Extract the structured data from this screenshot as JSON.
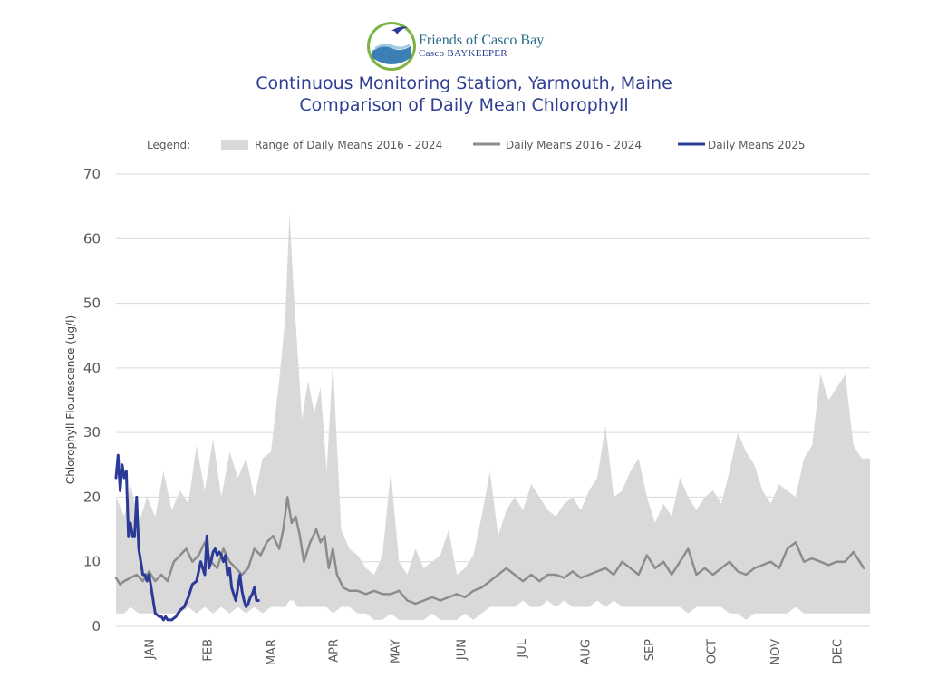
{
  "header": {
    "logo_line1": "Friends of Casco Bay",
    "logo_line2": "Casco BAYKEEPER",
    "title_line1": "Continuous Monitoring Station, Yarmouth, Maine",
    "title_line2": "Comparison of Daily Mean Chlorophyll"
  },
  "legend": {
    "label": "Legend:",
    "range_label": "Range of Daily Means 2016 - 2024",
    "mean_label": "Daily Means 2016 - 2024",
    "current_label": "Daily Means 2025"
  },
  "colors": {
    "range_fill": "#d9d9da",
    "mean_line": "#8c8c8c",
    "current_line": "#2b3a96",
    "grid": "#d9d9d9",
    "title": "#2e3f92"
  },
  "chart_data": {
    "type": "area",
    "title": "Continuous Monitoring Station, Yarmouth, Maine Comparison of Daily Mean Chlorophyll",
    "xlabel": "",
    "ylabel": "Chlorophyll Flourescence (ug/l)",
    "ylim": [
      0,
      70
    ],
    "yticks": [
      0,
      10,
      20,
      30,
      40,
      50,
      60,
      70
    ],
    "xlim_day_of_year": [
      1,
      366
    ],
    "month_labels": [
      "JAN",
      "FEB",
      "MAR",
      "APR",
      "MAY",
      "JUN",
      "JUL",
      "AUG",
      "SEP",
      "OCT",
      "NOV",
      "DEC"
    ],
    "month_label_day_of_year": [
      17,
      45,
      76,
      106,
      136,
      168,
      197,
      228,
      259,
      289,
      320,
      350
    ],
    "grid": true,
    "legend_position": "top",
    "series": [
      {
        "name": "Range of Daily Means 2016 - 2024",
        "kind": "band",
        "x": [
          1,
          5,
          8,
          12,
          16,
          20,
          24,
          28,
          32,
          36,
          40,
          44,
          48,
          52,
          56,
          60,
          64,
          68,
          72,
          76,
          80,
          83,
          85,
          87,
          89,
          91,
          94,
          97,
          100,
          103,
          106,
          110,
          114,
          118,
          122,
          126,
          130,
          134,
          138,
          142,
          146,
          150,
          154,
          158,
          162,
          166,
          170,
          174,
          178,
          182,
          186,
          190,
          194,
          198,
          202,
          206,
          210,
          214,
          218,
          222,
          226,
          230,
          234,
          238,
          242,
          246,
          250,
          254,
          258,
          262,
          266,
          270,
          274,
          278,
          282,
          286,
          290,
          294,
          298,
          302,
          306,
          310,
          314,
          318,
          322,
          326,
          330,
          334,
          338,
          342,
          346,
          350,
          354,
          358,
          362,
          366
        ],
        "upper": [
          20,
          17,
          22,
          16,
          20,
          17,
          24,
          18,
          21,
          19,
          28,
          21,
          29,
          20,
          27,
          23,
          26,
          20,
          26,
          27,
          38,
          48,
          64,
          52,
          42,
          32,
          38,
          33,
          37,
          24,
          41,
          15,
          12,
          11,
          9,
          8,
          11,
          24,
          10,
          8,
          12,
          9,
          10,
          11,
          15,
          8,
          9,
          11,
          17,
          24,
          14,
          18,
          20,
          18,
          22,
          20,
          18,
          17,
          19,
          20,
          18,
          21,
          23,
          31,
          20,
          21,
          24,
          26,
          20,
          16,
          19,
          17,
          23,
          20,
          18,
          20,
          21,
          19,
          24,
          30,
          27,
          25,
          21,
          19,
          22,
          21,
          20,
          26,
          28,
          39,
          35,
          37,
          39,
          28,
          26,
          26
        ],
        "lower": [
          2,
          2,
          3,
          2,
          2,
          2,
          2,
          2,
          2,
          3,
          2,
          3,
          2,
          3,
          2,
          3,
          2,
          3,
          2,
          3,
          3,
          3,
          4,
          4,
          3,
          3,
          3,
          3,
          3,
          3,
          2,
          3,
          3,
          2,
          2,
          1,
          1,
          2,
          1,
          1,
          1,
          1,
          2,
          1,
          1,
          1,
          2,
          1,
          2,
          3,
          3,
          3,
          3,
          4,
          3,
          3,
          4,
          3,
          4,
          3,
          3,
          3,
          4,
          3,
          4,
          3,
          3,
          3,
          3,
          3,
          3,
          3,
          3,
          2,
          3,
          3,
          3,
          3,
          2,
          2,
          1,
          2,
          2,
          2,
          2,
          2,
          3,
          2,
          2,
          2,
          2,
          2,
          2,
          2,
          2,
          2
        ]
      },
      {
        "name": "Daily Means 2016 - 2024",
        "kind": "line",
        "x": [
          1,
          3,
          5,
          8,
          11,
          14,
          17,
          20,
          23,
          26,
          29,
          32,
          35,
          38,
          41,
          44,
          47,
          50,
          53,
          56,
          59,
          62,
          65,
          68,
          71,
          74,
          77,
          80,
          82,
          84,
          86,
          88,
          90,
          92,
          95,
          98,
          100,
          102,
          104,
          106,
          108,
          111,
          114,
          118,
          122,
          126,
          130,
          134,
          138,
          142,
          146,
          150,
          154,
          158,
          162,
          166,
          170,
          174,
          178,
          182,
          186,
          190,
          194,
          198,
          202,
          206,
          210,
          214,
          218,
          222,
          226,
          230,
          234,
          238,
          242,
          246,
          250,
          254,
          258,
          262,
          266,
          270,
          274,
          278,
          282,
          286,
          290,
          294,
          298,
          302,
          306,
          310,
          314,
          318,
          322,
          326,
          330,
          334,
          338,
          342,
          346,
          350,
          354,
          358,
          361,
          363
        ],
        "y": [
          7.5,
          6.5,
          7,
          7.5,
          8,
          7,
          8.5,
          7,
          8,
          7,
          10,
          11,
          12,
          10,
          11,
          13,
          10,
          9,
          12,
          10,
          9,
          8,
          9,
          12,
          11,
          13,
          14,
          12,
          15,
          20,
          16,
          17,
          14,
          10,
          13,
          15,
          13,
          14,
          9,
          12,
          8,
          6,
          5.5,
          5.5,
          5,
          5.5,
          5,
          5,
          5.5,
          4,
          3.5,
          4,
          4.5,
          4,
          4.5,
          5,
          4.5,
          5.5,
          6,
          7,
          8,
          9,
          8,
          7,
          8,
          7,
          8,
          8,
          7.5,
          8.5,
          7.5,
          8,
          8.5,
          9,
          8,
          10,
          9,
          8,
          11,
          9,
          10,
          8,
          10,
          12,
          8,
          9,
          8,
          9,
          10,
          8.5,
          8,
          9,
          9.5,
          10,
          9,
          12,
          13,
          10,
          10.5,
          10,
          9.5,
          10,
          10,
          11.5,
          10,
          9
        ],
        "stroke_width": 2.5
      },
      {
        "name": "Daily Means 2025",
        "kind": "line",
        "x": [
          1,
          2,
          3,
          4,
          5,
          6,
          7,
          8,
          9,
          10,
          11,
          12,
          13,
          14,
          15,
          16,
          17,
          18,
          20,
          22,
          23,
          24,
          25,
          26,
          27,
          28,
          30,
          32,
          34,
          36,
          38,
          40,
          42,
          44,
          45,
          46,
          47,
          48,
          49,
          50,
          51,
          52,
          53,
          54,
          55,
          56,
          57,
          58,
          59,
          60,
          61,
          62,
          63,
          64,
          65,
          66,
          67,
          68,
          69,
          70
        ],
        "y": [
          23,
          26.5,
          21,
          25,
          23,
          24,
          14,
          16,
          14,
          14,
          20,
          12,
          10,
          8,
          8,
          7,
          8,
          6,
          2,
          1.5,
          1.5,
          1,
          1.5,
          1,
          1,
          1,
          1.5,
          2.5,
          3,
          4.5,
          6.5,
          7,
          10,
          8,
          14,
          9,
          10,
          11.5,
          12,
          11,
          11.5,
          11,
          10,
          11,
          8,
          9,
          6,
          5,
          4,
          6,
          8,
          5.5,
          4,
          3,
          3.5,
          4.5,
          5,
          6,
          4,
          4
        ],
        "stroke_width": 3
      }
    ]
  }
}
